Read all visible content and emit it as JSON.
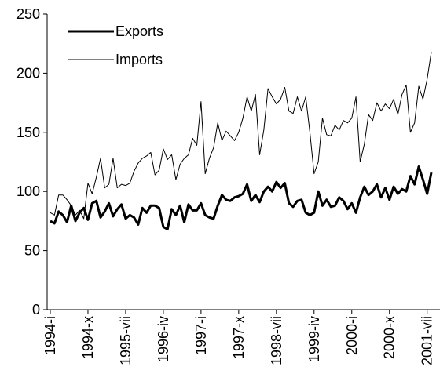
{
  "chart_data": {
    "type": "line",
    "categories": [
      "1994-i",
      null,
      null,
      null,
      null,
      null,
      null,
      null,
      null,
      "1994-x",
      null,
      null,
      null,
      null,
      null,
      null,
      null,
      null,
      "1995-vii",
      null,
      null,
      null,
      null,
      null,
      null,
      null,
      null,
      "1996-iv",
      null,
      null,
      null,
      null,
      null,
      null,
      null,
      null,
      "1997-i",
      null,
      null,
      null,
      null,
      null,
      null,
      null,
      null,
      "1997-x",
      null,
      null,
      null,
      null,
      null,
      null,
      null,
      null,
      "1998-vii",
      null,
      null,
      null,
      null,
      null,
      null,
      null,
      null,
      "1999-iv",
      null,
      null,
      null,
      null,
      null,
      null,
      null,
      null,
      "2000-i",
      null,
      null,
      null,
      null,
      null,
      null,
      null,
      null,
      "2000-x",
      null,
      null,
      null,
      null,
      null,
      null,
      null,
      null,
      "2001-vii",
      null
    ],
    "series": [
      {
        "name": "Exports",
        "color": "#000000",
        "width": 3,
        "values": [
          75,
          73,
          83,
          80,
          74,
          88,
          75,
          82,
          86,
          76,
          90,
          92,
          78,
          83,
          90,
          79,
          85,
          89,
          77,
          80,
          78,
          72,
          86,
          82,
          88,
          88,
          86,
          70,
          68,
          85,
          80,
          88,
          74,
          89,
          84,
          84,
          90,
          80,
          78,
          77,
          88,
          97,
          93,
          92,
          95,
          96,
          98,
          106,
          92,
          97,
          91,
          100,
          104,
          100,
          108,
          103,
          107,
          90,
          87,
          92,
          93,
          82,
          80,
          82,
          100,
          88,
          93,
          87,
          88,
          95,
          92,
          85,
          90,
          82,
          95,
          104,
          97,
          100,
          106,
          95,
          103,
          93,
          104,
          98,
          102,
          100,
          113,
          106,
          121,
          110,
          98,
          116
        ]
      },
      {
        "name": "Imports",
        "color": "#000000",
        "width": 1,
        "values": [
          82,
          80,
          97,
          97,
          93,
          88,
          80,
          84,
          77,
          107,
          98,
          112,
          128,
          103,
          106,
          128,
          103,
          106,
          105,
          107,
          117,
          124,
          128,
          130,
          133,
          114,
          118,
          136,
          127,
          131,
          110,
          123,
          128,
          131,
          145,
          139,
          176,
          115,
          128,
          137,
          158,
          143,
          151,
          147,
          143,
          150,
          162,
          180,
          168,
          182,
          131,
          152,
          187,
          180,
          174,
          178,
          188,
          168,
          166,
          180,
          168,
          180,
          150,
          115,
          125,
          162,
          148,
          147,
          156,
          152,
          160,
          158,
          162,
          180,
          125,
          140,
          165,
          160,
          175,
          168,
          174,
          170,
          178,
          165,
          182,
          190,
          150,
          158,
          189,
          178,
          195,
          218
        ]
      }
    ],
    "ylim": [
      0,
      250
    ],
    "yticks": [
      0,
      50,
      100,
      150,
      200,
      250
    ],
    "legend": "top-left"
  }
}
